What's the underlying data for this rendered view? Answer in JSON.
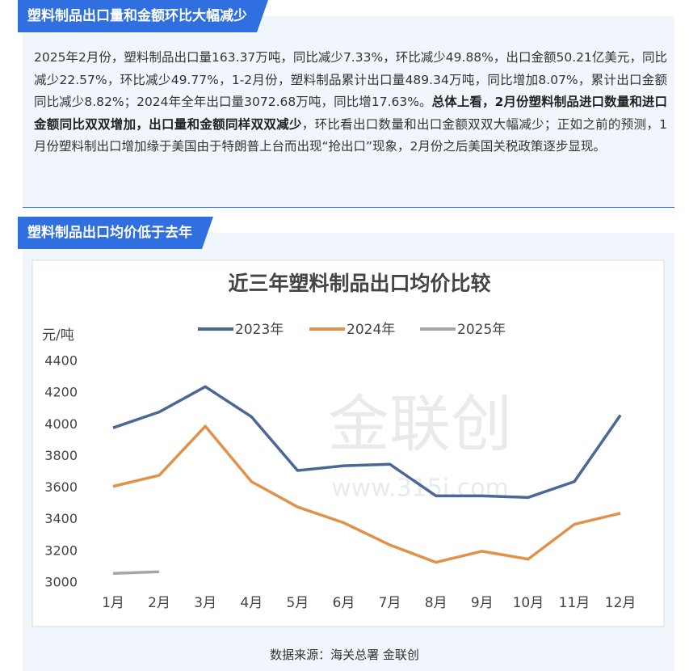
{
  "sections": [
    {
      "heading": "塑料制品出口量和金额环比大幅减少",
      "paragraph": [
        {
          "text": "2025年2月份，塑料制品出口量163.37万吨，同比减少7.33%，环比减少49.88%，出口金额50.21亿美元，同比减少22.57%，环比减少49.77%，1-2月份，塑料制品累计出口量489.34万吨，同比增加8.07%，累计出口金额同比减少8.82%；2024年全年出口量3072.68万吨，同比增17.63%。",
          "bold": false
        },
        {
          "text": "总体上看，2月份塑料制品进口数量和进口金额同比双双增加，出口量和金额同样双双减少",
          "bold": true
        },
        {
          "text": "，环比看出口数量和出口金额双双大幅减少；正如之前的预测，1月份塑料制出口增加缘于美国由于特朗普上台而出现“抢出口”现象，2月份之后美国关税政策逐步显现。",
          "bold": false
        }
      ]
    },
    {
      "heading": "塑料制品出口均价低于去年"
    }
  ],
  "chart_data": {
    "type": "line",
    "title": "近三年塑料制品出口均价比较",
    "y_label": "元/吨",
    "watermark": [
      "金联创",
      "www.315i.com"
    ],
    "categories": [
      "1月",
      "2月",
      "3月",
      "4月",
      "5月",
      "6月",
      "7月",
      "8月",
      "9月",
      "10月",
      "11月",
      "12月"
    ],
    "series": [
      {
        "name": "2023年",
        "color": "#4a6795",
        "values": [
          3980,
          4080,
          4240,
          4050,
          3710,
          3740,
          3750,
          3550,
          3550,
          3540,
          3640,
          4060
        ]
      },
      {
        "name": "2024年",
        "color": "#e0914a",
        "values": [
          3610,
          3680,
          3990,
          3640,
          3480,
          3380,
          3240,
          3130,
          3200,
          3150,
          3370,
          3440
        ]
      },
      {
        "name": "2025年",
        "color": "#a6a6a6",
        "values": [
          3060,
          3070,
          null,
          null,
          null,
          null,
          null,
          null,
          null,
          null,
          null,
          null
        ]
      }
    ],
    "ylim": [
      3000,
      4400
    ],
    "yticks": [
      3000,
      3200,
      3400,
      3600,
      3800,
      4000,
      4200,
      4400
    ],
    "legend": "top"
  },
  "source": "数据来源：海关总署 金联创"
}
